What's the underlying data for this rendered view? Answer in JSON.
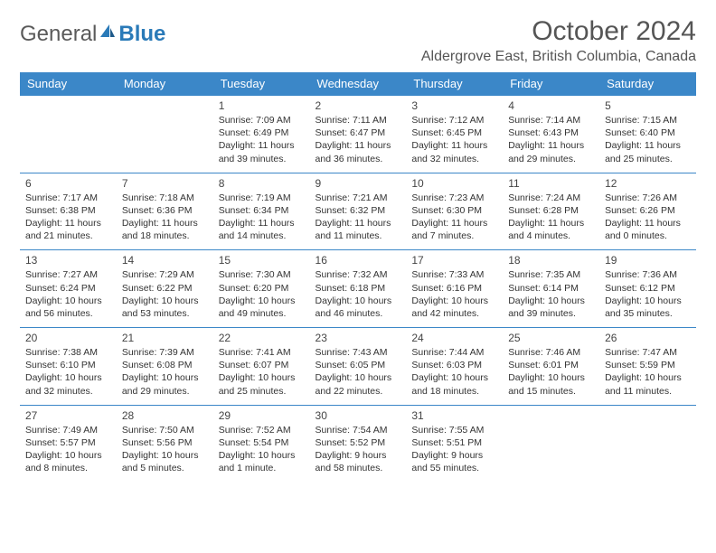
{
  "logo": {
    "text1": "General",
    "text2": "Blue"
  },
  "title": "October 2024",
  "location": "Aldergrove East, British Columbia, Canada",
  "colors": {
    "header_bg": "#3b87c8",
    "header_fg": "#ffffff",
    "border": "#3b87c8"
  },
  "weekdays": [
    "Sunday",
    "Monday",
    "Tuesday",
    "Wednesday",
    "Thursday",
    "Friday",
    "Saturday"
  ],
  "weeks": [
    [
      null,
      null,
      {
        "n": "1",
        "sunrise": "7:09 AM",
        "sunset": "6:49 PM",
        "daylight": "11 hours and 39 minutes."
      },
      {
        "n": "2",
        "sunrise": "7:11 AM",
        "sunset": "6:47 PM",
        "daylight": "11 hours and 36 minutes."
      },
      {
        "n": "3",
        "sunrise": "7:12 AM",
        "sunset": "6:45 PM",
        "daylight": "11 hours and 32 minutes."
      },
      {
        "n": "4",
        "sunrise": "7:14 AM",
        "sunset": "6:43 PM",
        "daylight": "11 hours and 29 minutes."
      },
      {
        "n": "5",
        "sunrise": "7:15 AM",
        "sunset": "6:40 PM",
        "daylight": "11 hours and 25 minutes."
      }
    ],
    [
      {
        "n": "6",
        "sunrise": "7:17 AM",
        "sunset": "6:38 PM",
        "daylight": "11 hours and 21 minutes."
      },
      {
        "n": "7",
        "sunrise": "7:18 AM",
        "sunset": "6:36 PM",
        "daylight": "11 hours and 18 minutes."
      },
      {
        "n": "8",
        "sunrise": "7:19 AM",
        "sunset": "6:34 PM",
        "daylight": "11 hours and 14 minutes."
      },
      {
        "n": "9",
        "sunrise": "7:21 AM",
        "sunset": "6:32 PM",
        "daylight": "11 hours and 11 minutes."
      },
      {
        "n": "10",
        "sunrise": "7:23 AM",
        "sunset": "6:30 PM",
        "daylight": "11 hours and 7 minutes."
      },
      {
        "n": "11",
        "sunrise": "7:24 AM",
        "sunset": "6:28 PM",
        "daylight": "11 hours and 4 minutes."
      },
      {
        "n": "12",
        "sunrise": "7:26 AM",
        "sunset": "6:26 PM",
        "daylight": "11 hours and 0 minutes."
      }
    ],
    [
      {
        "n": "13",
        "sunrise": "7:27 AM",
        "sunset": "6:24 PM",
        "daylight": "10 hours and 56 minutes."
      },
      {
        "n": "14",
        "sunrise": "7:29 AM",
        "sunset": "6:22 PM",
        "daylight": "10 hours and 53 minutes."
      },
      {
        "n": "15",
        "sunrise": "7:30 AM",
        "sunset": "6:20 PM",
        "daylight": "10 hours and 49 minutes."
      },
      {
        "n": "16",
        "sunrise": "7:32 AM",
        "sunset": "6:18 PM",
        "daylight": "10 hours and 46 minutes."
      },
      {
        "n": "17",
        "sunrise": "7:33 AM",
        "sunset": "6:16 PM",
        "daylight": "10 hours and 42 minutes."
      },
      {
        "n": "18",
        "sunrise": "7:35 AM",
        "sunset": "6:14 PM",
        "daylight": "10 hours and 39 minutes."
      },
      {
        "n": "19",
        "sunrise": "7:36 AM",
        "sunset": "6:12 PM",
        "daylight": "10 hours and 35 minutes."
      }
    ],
    [
      {
        "n": "20",
        "sunrise": "7:38 AM",
        "sunset": "6:10 PM",
        "daylight": "10 hours and 32 minutes."
      },
      {
        "n": "21",
        "sunrise": "7:39 AM",
        "sunset": "6:08 PM",
        "daylight": "10 hours and 29 minutes."
      },
      {
        "n": "22",
        "sunrise": "7:41 AM",
        "sunset": "6:07 PM",
        "daylight": "10 hours and 25 minutes."
      },
      {
        "n": "23",
        "sunrise": "7:43 AM",
        "sunset": "6:05 PM",
        "daylight": "10 hours and 22 minutes."
      },
      {
        "n": "24",
        "sunrise": "7:44 AM",
        "sunset": "6:03 PM",
        "daylight": "10 hours and 18 minutes."
      },
      {
        "n": "25",
        "sunrise": "7:46 AM",
        "sunset": "6:01 PM",
        "daylight": "10 hours and 15 minutes."
      },
      {
        "n": "26",
        "sunrise": "7:47 AM",
        "sunset": "5:59 PM",
        "daylight": "10 hours and 11 minutes."
      }
    ],
    [
      {
        "n": "27",
        "sunrise": "7:49 AM",
        "sunset": "5:57 PM",
        "daylight": "10 hours and 8 minutes."
      },
      {
        "n": "28",
        "sunrise": "7:50 AM",
        "sunset": "5:56 PM",
        "daylight": "10 hours and 5 minutes."
      },
      {
        "n": "29",
        "sunrise": "7:52 AM",
        "sunset": "5:54 PM",
        "daylight": "10 hours and 1 minute."
      },
      {
        "n": "30",
        "sunrise": "7:54 AM",
        "sunset": "5:52 PM",
        "daylight": "9 hours and 58 minutes."
      },
      {
        "n": "31",
        "sunrise": "7:55 AM",
        "sunset": "5:51 PM",
        "daylight": "9 hours and 55 minutes."
      },
      null,
      null
    ]
  ],
  "labels": {
    "sunrise": "Sunrise:",
    "sunset": "Sunset:",
    "daylight": "Daylight:"
  }
}
